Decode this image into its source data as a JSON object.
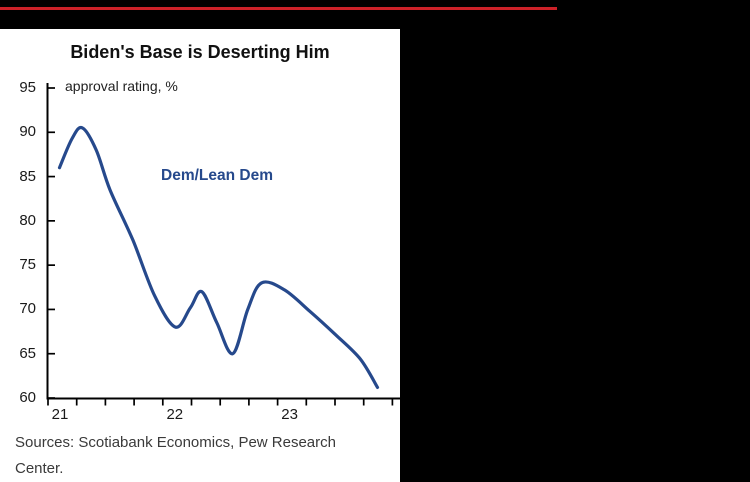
{
  "chart_data": {
    "type": "line",
    "title": "Biden's Base is Deserting Him",
    "unit_label": "approval rating, %",
    "xlabel": "",
    "ylabel": "approval rating, %",
    "ylim": [
      60,
      95
    ],
    "y_ticks": [
      60,
      65,
      70,
      75,
      80,
      85,
      90,
      95
    ],
    "xlim": [
      21.0,
      24.0
    ],
    "x_year_labels": [
      "21",
      "22",
      "23"
    ],
    "x_minor_ticks_per_year": 4,
    "grid": false,
    "legend_position": "inline-annotation",
    "series": [
      {
        "name": "Dem/Lean Dem",
        "color": "#26498C",
        "points": [
          [
            21.1,
            86.0
          ],
          [
            21.21,
            89.3
          ],
          [
            21.3,
            90.5
          ],
          [
            21.42,
            88.0
          ],
          [
            21.54,
            83.5
          ],
          [
            21.74,
            77.8
          ],
          [
            21.93,
            71.5
          ],
          [
            22.11,
            68.0
          ],
          [
            22.24,
            70.2
          ],
          [
            22.34,
            72.0
          ],
          [
            22.47,
            68.5
          ],
          [
            22.61,
            65.0
          ],
          [
            22.74,
            70.0
          ],
          [
            22.86,
            73.0
          ],
          [
            23.06,
            72.2
          ],
          [
            23.28,
            69.8
          ],
          [
            23.5,
            67.2
          ],
          [
            23.72,
            64.4
          ],
          [
            23.87,
            61.2
          ]
        ]
      }
    ]
  },
  "source_note": "Sources: Scotiabank Economics, Pew Research Center.",
  "accent_colors": {
    "separator_red": "#cc2128",
    "series_navy": "#26498C",
    "axis_black": "#000000"
  }
}
